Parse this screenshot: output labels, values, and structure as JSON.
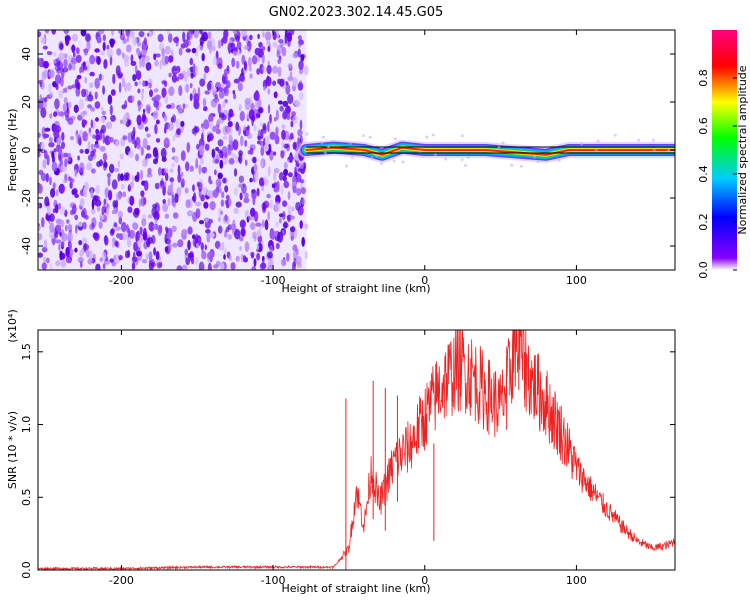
{
  "chart_data": [
    {
      "type": "heatmap",
      "title": "GN02.2023.302.14.45.G05",
      "xlabel": "Height of straight line (km)",
      "ylabel": "Frequency (Hz)",
      "xlim": [
        -255,
        165
      ],
      "ylim": [
        -50,
        50
      ],
      "xticks": [
        -200,
        -100,
        0,
        100
      ],
      "yticks": [
        -40,
        -20,
        0,
        20,
        40
      ],
      "noise_region_x": [
        -255,
        -78
      ],
      "signal_band": {
        "x_start": -78,
        "x_end": 165,
        "freq_hz": 0,
        "points": [
          {
            "x": -78,
            "y": 0
          },
          {
            "x": -60,
            "y": 1
          },
          {
            "x": -40,
            "y": 0
          },
          {
            "x": -28,
            "y": -2
          },
          {
            "x": -15,
            "y": 1
          },
          {
            "x": 0,
            "y": 0
          },
          {
            "x": 40,
            "y": 0
          },
          {
            "x": 60,
            "y": -1
          },
          {
            "x": 80,
            "y": -2
          },
          {
            "x": 95,
            "y": 0
          },
          {
            "x": 165,
            "y": 0
          }
        ]
      },
      "colorbar": {
        "label": "Normalized spectral amplitude",
        "range": [
          0,
          1
        ],
        "ticks": [
          "0.0",
          "0.2",
          "0.4",
          "0.6",
          "0.8"
        ],
        "colors": [
          "#ffffff",
          "#8800ff",
          "#0000ff",
          "#00ccff",
          "#00ff00",
          "#ffff00",
          "#ff0000",
          "#ff0080"
        ]
      },
      "colors": {
        "noise": "#7a1ff2",
        "band_edge": "#000000"
      }
    },
    {
      "type": "line",
      "xlabel": "Height of straight line (km)",
      "ylabel": "SNR (10 * v/v)",
      "y_scale_label": "(x10⁴)",
      "xlim": [
        -255,
        165
      ],
      "ylim": [
        0,
        1.65
      ],
      "xticks": [
        -200,
        -100,
        0,
        100
      ],
      "yticks": [
        "0.0",
        "0.5",
        "1.0",
        "1.5"
      ],
      "color": "#ee2222",
      "series": [
        {
          "x": [
            -255,
            -200,
            -150,
            -100,
            -60,
            -50,
            -45,
            -40,
            -35,
            -30,
            -20,
            -10,
            0,
            10,
            20,
            25,
            30,
            40,
            50,
            55,
            60,
            70,
            80,
            90,
            100,
            110,
            120,
            130,
            140,
            150,
            160,
            165
          ],
          "values": [
            0.01,
            0.01,
            0.02,
            0.02,
            0.02,
            0.15,
            0.55,
            0.3,
            0.7,
            0.45,
            0.75,
            0.85,
            1.05,
            1.25,
            1.38,
            1.4,
            1.35,
            1.22,
            1.12,
            1.3,
            1.6,
            1.3,
            1.15,
            0.95,
            0.7,
            0.55,
            0.42,
            0.3,
            0.2,
            0.15,
            0.17,
            0.2
          ]
        }
      ],
      "spikes": [
        {
          "x": -52,
          "y": 1.18
        },
        {
          "x": -34,
          "y": 1.3
        },
        {
          "x": -26,
          "y": 1.25
        },
        {
          "x": -18,
          "y": 1.2
        },
        {
          "x": 6,
          "y": 0.2
        },
        {
          "x": 54,
          "y": 1.35
        },
        {
          "x": 58,
          "y": 1.58
        },
        {
          "x": 62,
          "y": 1.65
        },
        {
          "x": 66,
          "y": 1.5
        }
      ]
    }
  ]
}
